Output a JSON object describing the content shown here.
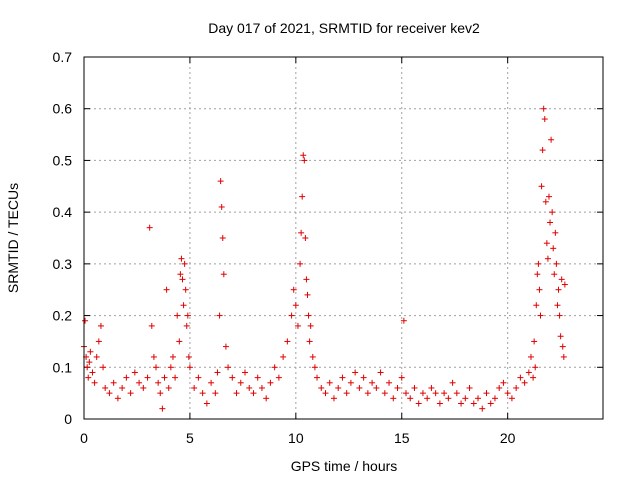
{
  "chart_data": {
    "type": "scatter",
    "title": "Day 017 of 2021, SRMTID for receiver kev2",
    "xlabel": "GPS time / hours",
    "ylabel": "SRMTID / TECUs",
    "xlim": [
      0,
      24.5
    ],
    "ylim": [
      0,
      0.7
    ],
    "x_ticks": [
      0,
      5,
      10,
      15,
      20
    ],
    "x_tick_labels": [
      "0",
      "5",
      "10",
      "15",
      "20"
    ],
    "y_ticks": [
      0,
      0.1,
      0.2,
      0.3,
      0.4,
      0.5,
      0.6,
      0.7
    ],
    "y_tick_labels": [
      "0",
      "0.1",
      "0.2",
      "0.3",
      "0.4",
      "0.5",
      "0.6",
      "0.7"
    ],
    "grid": true,
    "marker": "+",
    "marker_color": "#e00000",
    "series": [
      {
        "name": "SRMTID",
        "x": [
          0.0,
          0.05,
          0.1,
          0.15,
          0.2,
          0.25,
          0.3,
          0.4,
          0.5,
          0.6,
          0.7,
          0.8,
          0.9,
          1.0,
          1.2,
          1.4,
          1.6,
          1.8,
          2.0,
          2.2,
          2.4,
          2.6,
          2.8,
          3.0,
          3.1,
          3.2,
          3.3,
          3.4,
          3.5,
          3.6,
          3.7,
          3.8,
          3.9,
          4.0,
          4.1,
          4.2,
          4.3,
          4.4,
          4.5,
          4.55,
          4.6,
          4.65,
          4.7,
          4.75,
          4.8,
          4.85,
          4.9,
          4.95,
          5.0,
          5.2,
          5.4,
          5.6,
          5.8,
          6.0,
          6.2,
          6.3,
          6.4,
          6.45,
          6.5,
          6.55,
          6.6,
          6.7,
          6.8,
          7.0,
          7.2,
          7.4,
          7.6,
          7.8,
          8.0,
          8.2,
          8.4,
          8.6,
          8.8,
          9.0,
          9.2,
          9.4,
          9.6,
          9.8,
          9.9,
          10.0,
          10.1,
          10.2,
          10.25,
          10.3,
          10.35,
          10.4,
          10.45,
          10.5,
          10.55,
          10.6,
          10.65,
          10.7,
          10.8,
          10.9,
          11.0,
          11.2,
          11.4,
          11.6,
          11.8,
          12.0,
          12.2,
          12.4,
          12.6,
          12.8,
          13.0,
          13.2,
          13.4,
          13.6,
          13.8,
          14.0,
          14.2,
          14.4,
          14.6,
          14.8,
          15.0,
          15.1,
          15.2,
          15.4,
          15.6,
          15.8,
          16.0,
          16.2,
          16.4,
          16.6,
          16.8,
          17.0,
          17.2,
          17.4,
          17.6,
          17.8,
          18.0,
          18.2,
          18.4,
          18.6,
          18.8,
          19.0,
          19.2,
          19.4,
          19.6,
          19.8,
          20.0,
          20.2,
          20.4,
          20.6,
          20.8,
          21.0,
          21.1,
          21.2,
          21.25,
          21.3,
          21.35,
          21.4,
          21.45,
          21.5,
          21.55,
          21.6,
          21.65,
          21.7,
          21.75,
          21.8,
          21.85,
          21.9,
          21.95,
          22.0,
          22.05,
          22.1,
          22.15,
          22.2,
          22.25,
          22.3,
          22.35,
          22.4,
          22.45,
          22.5,
          22.55,
          22.6,
          22.65,
          22.7
        ],
        "y": [
          0.14,
          0.19,
          0.12,
          0.1,
          0.08,
          0.11,
          0.13,
          0.09,
          0.07,
          0.12,
          0.15,
          0.18,
          0.1,
          0.06,
          0.05,
          0.07,
          0.04,
          0.06,
          0.08,
          0.05,
          0.09,
          0.07,
          0.06,
          0.08,
          0.37,
          0.18,
          0.12,
          0.1,
          0.07,
          0.05,
          0.02,
          0.08,
          0.25,
          0.06,
          0.1,
          0.12,
          0.08,
          0.2,
          0.15,
          0.28,
          0.31,
          0.27,
          0.22,
          0.3,
          0.25,
          0.18,
          0.2,
          0.12,
          0.1,
          0.06,
          0.08,
          0.05,
          0.03,
          0.07,
          0.05,
          0.09,
          0.2,
          0.46,
          0.41,
          0.35,
          0.28,
          0.14,
          0.1,
          0.08,
          0.05,
          0.07,
          0.09,
          0.06,
          0.05,
          0.08,
          0.06,
          0.04,
          0.07,
          0.1,
          0.08,
          0.12,
          0.15,
          0.2,
          0.25,
          0.22,
          0.18,
          0.3,
          0.36,
          0.43,
          0.51,
          0.5,
          0.35,
          0.27,
          0.24,
          0.2,
          0.15,
          0.18,
          0.12,
          0.1,
          0.08,
          0.06,
          0.05,
          0.07,
          0.04,
          0.06,
          0.08,
          0.05,
          0.07,
          0.09,
          0.06,
          0.08,
          0.05,
          0.07,
          0.06,
          0.09,
          0.05,
          0.07,
          0.04,
          0.06,
          0.08,
          0.19,
          0.05,
          0.04,
          0.06,
          0.03,
          0.05,
          0.04,
          0.06,
          0.05,
          0.03,
          0.05,
          0.04,
          0.07,
          0.05,
          0.03,
          0.04,
          0.06,
          0.03,
          0.04,
          0.02,
          0.05,
          0.03,
          0.04,
          0.06,
          0.07,
          0.05,
          0.04,
          0.06,
          0.08,
          0.07,
          0.09,
          0.12,
          0.08,
          0.15,
          0.1,
          0.22,
          0.28,
          0.3,
          0.25,
          0.2,
          0.45,
          0.52,
          0.6,
          0.58,
          0.42,
          0.34,
          0.31,
          0.43,
          0.38,
          0.54,
          0.4,
          0.33,
          0.28,
          0.36,
          0.3,
          0.22,
          0.25,
          0.2,
          0.16,
          0.27,
          0.14,
          0.12,
          0.26
        ]
      }
    ]
  }
}
